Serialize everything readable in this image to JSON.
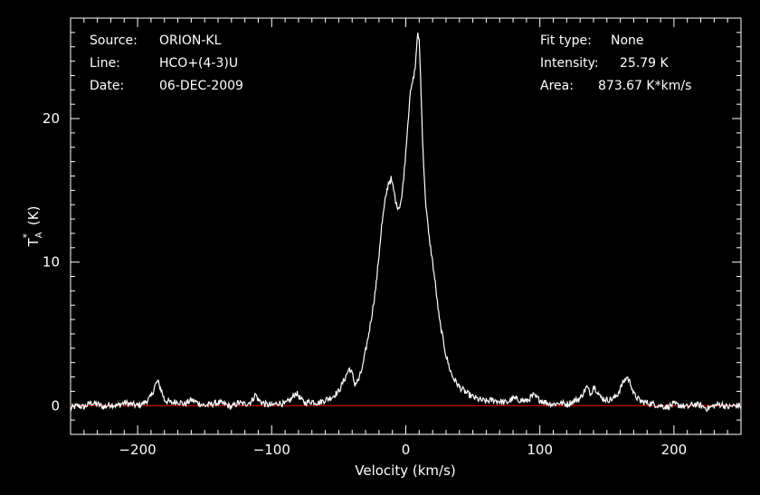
{
  "header": {
    "left": [
      {
        "key": "Source:",
        "value": "ORION-KL"
      },
      {
        "key": "Line:",
        "value": "HCO+(4-3)U"
      },
      {
        "key": "Date:",
        "value": "06-DEC-2009"
      }
    ],
    "right": [
      {
        "key": "Fit type:",
        "value": "None"
      },
      {
        "key": "Intensity:",
        "value": "25.79 K"
      },
      {
        "key": "Area:",
        "value": "873.67 K*km/s"
      }
    ]
  },
  "chart_data": {
    "type": "line",
    "xlabel": "Velocity (km/s)",
    "ylabel": "T*A (K)",
    "xlim": [
      -250,
      250
    ],
    "ylim": [
      -2,
      27
    ],
    "xticks": [
      -200,
      -100,
      0,
      100,
      200
    ],
    "yticks": [
      0,
      10,
      20
    ],
    "grid": false,
    "legend": "none",
    "colors": {
      "background": "#000000",
      "foreground": "#ffffff",
      "baseline": "#ff0000"
    },
    "baseline": 0,
    "series": [
      {
        "x": [
          -250,
          -245,
          -240,
          -235,
          -230,
          -225,
          -220,
          -215,
          -210,
          -205,
          -200,
          -195,
          -190,
          -187,
          -185,
          -182,
          -180,
          -175,
          -170,
          -165,
          -160,
          -155,
          -150,
          -145,
          -140,
          -135,
          -130,
          -125,
          -120,
          -115,
          -112,
          -110,
          -105,
          -100,
          -95,
          -90,
          -85,
          -82,
          -80,
          -78,
          -75,
          -70,
          -65,
          -60,
          -55,
          -50,
          -45,
          -42,
          -40,
          -38,
          -35,
          -32,
          -30,
          -28,
          -25,
          -22,
          -20,
          -18,
          -15,
          -13,
          -11,
          -9,
          -7,
          -5,
          -3,
          -1,
          1,
          3,
          5,
          7,
          8,
          9,
          10,
          11,
          12,
          13,
          14,
          15,
          17,
          20,
          22,
          25,
          28,
          30,
          33,
          35,
          40,
          45,
          50,
          55,
          60,
          65,
          70,
          75,
          80,
          85,
          90,
          95,
          100,
          105,
          110,
          115,
          120,
          125,
          130,
          133,
          135,
          138,
          140,
          143,
          145,
          150,
          155,
          158,
          160,
          162,
          165,
          168,
          170,
          175,
          180,
          185,
          190,
          195,
          200,
          205,
          210,
          215,
          220,
          225,
          230,
          235,
          240,
          245,
          250
        ],
        "y": [
          -0.2,
          0.0,
          -0.1,
          0.2,
          0.1,
          -0.1,
          0.1,
          0.0,
          0.2,
          0.1,
          0.0,
          0.2,
          0.6,
          1.4,
          1.7,
          1.0,
          0.4,
          0.2,
          0.3,
          0.1,
          0.4,
          0.2,
          0.0,
          0.1,
          0.2,
          0.1,
          -0.1,
          0.2,
          0.1,
          0.3,
          0.8,
          0.4,
          0.1,
          0.0,
          0.2,
          0.1,
          0.5,
          0.9,
          0.7,
          0.4,
          0.2,
          0.3,
          0.2,
          0.4,
          0.6,
          1.0,
          2.0,
          2.6,
          2.2,
          1.5,
          1.8,
          2.8,
          3.8,
          4.8,
          6.5,
          8.5,
          10.5,
          12.5,
          14.5,
          15.5,
          15.8,
          15.0,
          14.0,
          13.8,
          14.5,
          16.5,
          19.0,
          21.5,
          22.5,
          23.5,
          25.0,
          25.8,
          25.5,
          23.0,
          20.0,
          17.5,
          15.5,
          14.0,
          12.0,
          10.0,
          8.5,
          6.0,
          4.5,
          3.5,
          2.5,
          2.0,
          1.3,
          0.9,
          0.6,
          0.4,
          0.3,
          0.4,
          0.3,
          0.2,
          0.5,
          0.4,
          0.3,
          0.7,
          0.4,
          0.2,
          0.1,
          0.2,
          0.1,
          0.3,
          0.5,
          1.0,
          1.3,
          0.8,
          1.4,
          1.0,
          0.6,
          0.4,
          0.5,
          0.8,
          1.2,
          1.6,
          2.0,
          1.5,
          0.8,
          0.3,
          0.2,
          0.1,
          0.0,
          -0.1,
          0.1,
          0.0,
          -0.1,
          0.1,
          0.0,
          -0.2,
          0.0,
          0.1,
          -0.1,
          0.0,
          0.0
        ]
      }
    ]
  }
}
